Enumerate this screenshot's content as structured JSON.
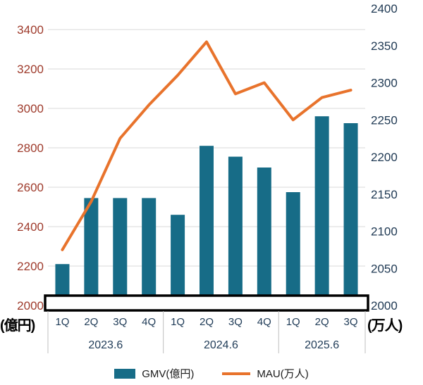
{
  "chart_data": {
    "type": "bar",
    "subtype": "combo-bar-line-dual-axis",
    "categories": [
      "1Q",
      "2Q",
      "3Q",
      "4Q",
      "1Q",
      "2Q",
      "3Q",
      "4Q",
      "1Q",
      "2Q",
      "3Q"
    ],
    "groups": [
      {
        "label": "2023.6",
        "span": 4
      },
      {
        "label": "2024.6",
        "span": 4
      },
      {
        "label": "2025.6",
        "span": 3
      }
    ],
    "series": [
      {
        "name": "GMV(億円)",
        "type": "bar",
        "axis": "left",
        "color": "#176c87",
        "values": [
          2210,
          2545,
          2545,
          2545,
          2460,
          2810,
          2755,
          2700,
          2575,
          2960,
          2925
        ]
      },
      {
        "name": "MAU(万人)",
        "type": "line",
        "axis": "right",
        "color": "#e8732c",
        "values": [
          2075,
          2140,
          2225,
          2270,
          2310,
          2355,
          2285,
          2300,
          2250,
          2280,
          2290
        ]
      }
    ],
    "left_axis": {
      "label": "(億円)",
      "min": 2000,
      "max": 3400,
      "step": 200,
      "ticks": [
        3400,
        3200,
        3000,
        2800,
        2600,
        2400,
        2200,
        2000
      ],
      "color": "#9e3a2b"
    },
    "right_axis": {
      "label": "(万人)",
      "min": 2000,
      "max": 2400,
      "step": 50,
      "ticks": [
        2400,
        2350,
        2300,
        2250,
        2200,
        2150,
        2100,
        2050,
        2000
      ],
      "color": "#203a54"
    },
    "category_color": "#1f3b57",
    "grid": true,
    "gridline_color": "#d9d9d9",
    "axis_break": true,
    "legend_position": "bottom",
    "title": ""
  },
  "legend": {
    "items": [
      {
        "label": "GMV(億円)",
        "color": "#176c87",
        "shape": "rect"
      },
      {
        "label": "MAU(万人)",
        "color": "#e8732c",
        "shape": "line"
      }
    ]
  }
}
